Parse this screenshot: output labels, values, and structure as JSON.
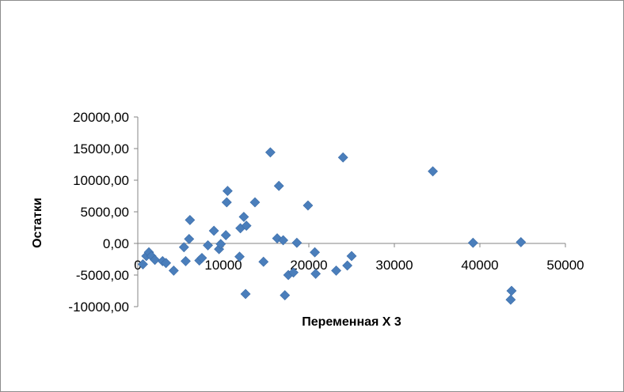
{
  "chart_data": {
    "type": "scatter",
    "title": "",
    "xlabel": "Переменная X 3",
    "ylabel": "Остатки",
    "xlim": [
      0,
      50000
    ],
    "ylim": [
      -10000,
      20000
    ],
    "x_ticks": [
      0,
      10000,
      20000,
      30000,
      40000,
      50000
    ],
    "x_tick_labels": [
      "0",
      "10000",
      "20000",
      "30000",
      "40000",
      "50000"
    ],
    "y_ticks": [
      20000,
      15000,
      10000,
      5000,
      0,
      -5000,
      -10000
    ],
    "y_tick_labels": [
      "20000,00",
      "15000,00",
      "10000,00",
      "5000,00",
      "0,00",
      "-5000,00",
      "-10000,00"
    ],
    "grid": false,
    "legend": false,
    "marker": "diamond",
    "marker_color": "#4a7ebb",
    "points": [
      {
        "x": 600,
        "y": -3300
      },
      {
        "x": 1000,
        "y": -2000
      },
      {
        "x": 1300,
        "y": -1400
      },
      {
        "x": 1600,
        "y": -2000
      },
      {
        "x": 2000,
        "y": -2600
      },
      {
        "x": 2900,
        "y": -2800
      },
      {
        "x": 3300,
        "y": -3100
      },
      {
        "x": 4200,
        "y": -4300
      },
      {
        "x": 5400,
        "y": -600
      },
      {
        "x": 5600,
        "y": -2800
      },
      {
        "x": 6000,
        "y": 700
      },
      {
        "x": 6100,
        "y": 3700
      },
      {
        "x": 7200,
        "y": -2700
      },
      {
        "x": 7500,
        "y": -2300
      },
      {
        "x": 8200,
        "y": -300
      },
      {
        "x": 8900,
        "y": 2000
      },
      {
        "x": 9500,
        "y": -900
      },
      {
        "x": 9700,
        "y": -100
      },
      {
        "x": 10300,
        "y": 1300
      },
      {
        "x": 10400,
        "y": 6500
      },
      {
        "x": 10500,
        "y": 8300
      },
      {
        "x": 11900,
        "y": -2100
      },
      {
        "x": 12000,
        "y": 2400
      },
      {
        "x": 12400,
        "y": 4200
      },
      {
        "x": 12600,
        "y": -8000
      },
      {
        "x": 12700,
        "y": 2800
      },
      {
        "x": 13700,
        "y": 6500
      },
      {
        "x": 14700,
        "y": -2900
      },
      {
        "x": 15500,
        "y": 14400
      },
      {
        "x": 16300,
        "y": 800
      },
      {
        "x": 16500,
        "y": 9100
      },
      {
        "x": 17000,
        "y": 500
      },
      {
        "x": 17200,
        "y": -8200
      },
      {
        "x": 17600,
        "y": -5000
      },
      {
        "x": 18200,
        "y": -4600
      },
      {
        "x": 18600,
        "y": 100
      },
      {
        "x": 19900,
        "y": 6000
      },
      {
        "x": 20700,
        "y": -1400
      },
      {
        "x": 20800,
        "y": -4800
      },
      {
        "x": 23200,
        "y": -4300
      },
      {
        "x": 24000,
        "y": 13600
      },
      {
        "x": 24500,
        "y": -3500
      },
      {
        "x": 25000,
        "y": -2000
      },
      {
        "x": 34500,
        "y": 11400
      },
      {
        "x": 39200,
        "y": 100
      },
      {
        "x": 43600,
        "y": -8900
      },
      {
        "x": 43700,
        "y": -7500
      },
      {
        "x": 44800,
        "y": 200
      }
    ]
  }
}
